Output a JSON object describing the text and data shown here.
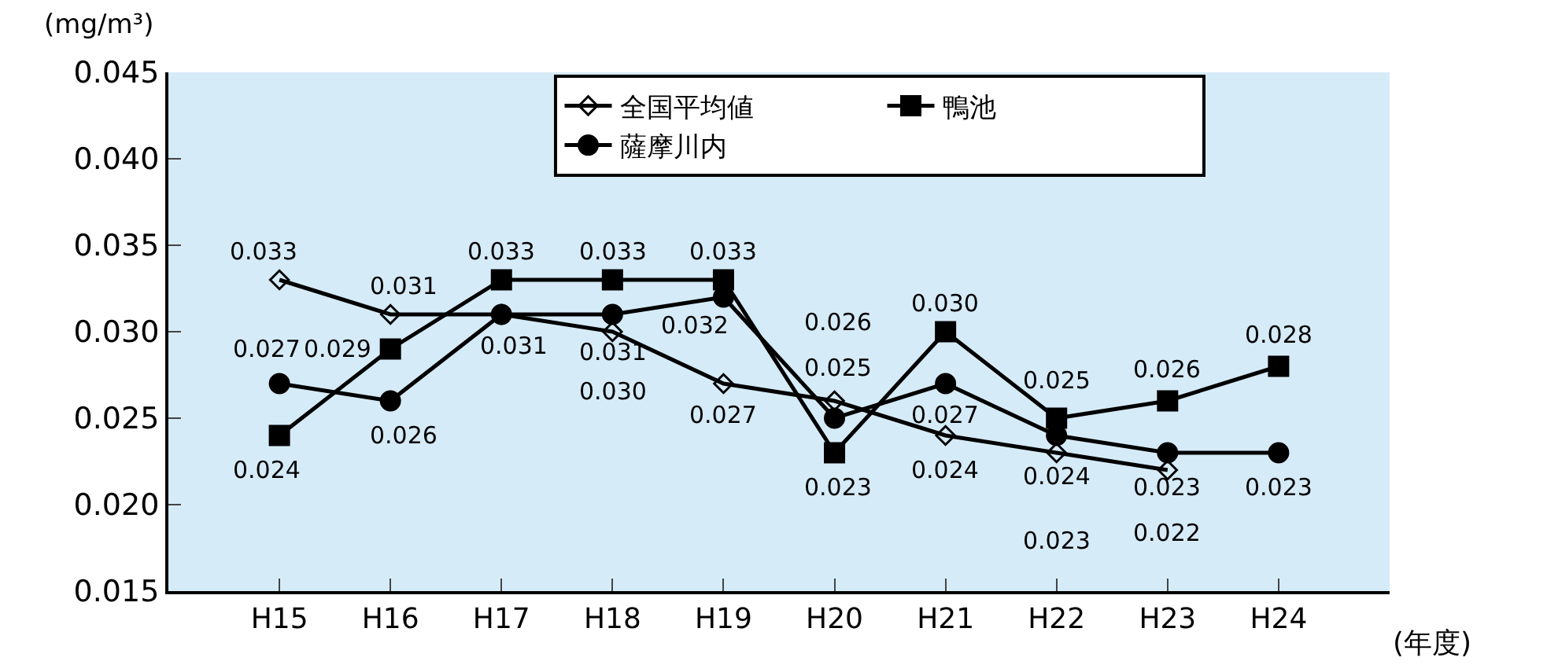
{
  "chart_data": {
    "type": "line",
    "ylabel": "(mg/m³)",
    "xlabel": "(年度)",
    "categories": [
      "H15",
      "H16",
      "H17",
      "H18",
      "H19",
      "H20",
      "H21",
      "H22",
      "H23",
      "H24"
    ],
    "ylim": [
      0.015,
      0.045
    ],
    "yticks": [
      {
        "value": 0.015,
        "label": "0.015"
      },
      {
        "value": 0.02,
        "label": "0.020"
      },
      {
        "value": 0.025,
        "label": "0.025"
      },
      {
        "value": 0.03,
        "label": "0.030"
      },
      {
        "value": 0.035,
        "label": "0.035"
      },
      {
        "value": 0.04,
        "label": "0.040"
      },
      {
        "value": 0.045,
        "label": "0.045"
      }
    ],
    "grid": false,
    "legend": "top right",
    "series": [
      {
        "name": "全国平均値",
        "color": "#000000",
        "marker": "diamond",
        "values": [
          0.033,
          0.031,
          0.031,
          0.03,
          0.027,
          0.026,
          0.024,
          0.023,
          0.022,
          null
        ],
        "value_labels": [
          "0.033",
          "0.031",
          null,
          "0.030",
          "0.027",
          "0.026",
          "0.024",
          "0.023",
          "0.022",
          null
        ]
      },
      {
        "name": "鴨池",
        "color": "#000000",
        "marker": "square",
        "values": [
          0.024,
          0.029,
          0.033,
          0.033,
          0.033,
          0.023,
          0.03,
          0.025,
          0.026,
          0.028
        ],
        "value_labels": [
          "0.024",
          "0.029",
          "0.033",
          "0.033",
          "0.033",
          "0.023",
          "0.030",
          "0.025",
          "0.026",
          "0.028"
        ]
      },
      {
        "name": "薩摩川内",
        "color": "#000000",
        "marker": "circle",
        "values": [
          0.027,
          0.026,
          0.031,
          0.031,
          0.032,
          0.025,
          0.027,
          0.024,
          0.023,
          0.023
        ],
        "value_labels": [
          "0.027",
          "0.026",
          "0.031",
          "0.031",
          "0.032",
          "0.025",
          "0.027",
          "0.024",
          "0.023",
          "0.023"
        ]
      }
    ]
  }
}
